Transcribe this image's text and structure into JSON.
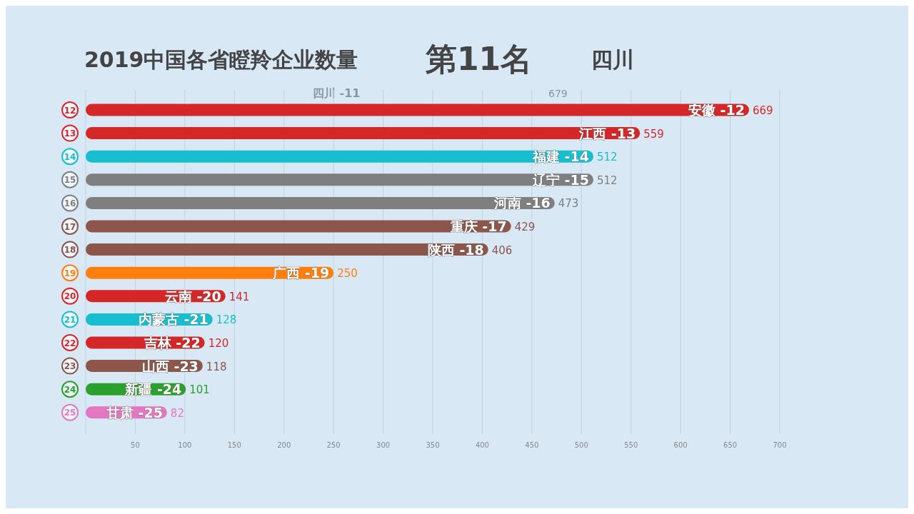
{
  "chart_data": {
    "type": "bar",
    "orientation": "horizontal",
    "title": "2019中国各省瞪羚企业数量",
    "subtitle": "第11名",
    "categories": [
      "12",
      "13",
      "14",
      "15",
      "16",
      "17",
      "18",
      "19",
      "20",
      "21",
      "22",
      "23",
      "24",
      "25"
    ],
    "values": [
      669,
      559,
      512,
      512,
      473,
      429,
      406,
      250,
      141,
      128,
      120,
      118,
      101,
      82
    ],
    "colors": [
      "#d62728",
      "#d62728",
      "#17becf",
      "#7f7f7f",
      "#7f7f7f",
      "#8c564b",
      "#8c564b",
      "#ff7f0e",
      "#d62728",
      "#17becf",
      "#d62728",
      "#8c564b",
      "#2ca02c",
      "#e377c2"
    ],
    "xlim": [
      0,
      700
    ],
    "xticks": [
      50,
      100,
      150,
      200,
      250,
      300,
      350,
      400,
      450,
      500,
      550,
      600,
      650,
      700
    ],
    "grid": "x",
    "data_labels": true,
    "annotations": [
      "四川",
      "四川 -11",
      "679",
      {
        "text": "安徽 -12",
        "x": 669,
        "y": "12"
      },
      {
        "text": "江西 -13",
        "x": 559,
        "y": "13"
      },
      {
        "text": "福建 -14",
        "x": 512,
        "y": "14"
      },
      {
        "text": "辽宁 -15",
        "x": 512,
        "y": "15"
      },
      {
        "text": "河南 -16",
        "x": 473,
        "y": "16"
      },
      {
        "text": "重庆 -17",
        "x": 429,
        "y": "17"
      },
      {
        "text": "陕西 -18",
        "x": 406,
        "y": "18"
      },
      {
        "text": "广西 -19",
        "x": 250,
        "y": "19"
      },
      {
        "text": "云南 -20",
        "x": 141,
        "y": "20"
      },
      {
        "text": "内蒙古 -21",
        "x": 128,
        "y": "21"
      },
      {
        "text": "吉林 -22",
        "x": 120,
        "y": "22"
      },
      {
        "text": "山西 -23",
        "x": 118,
        "y": "23"
      },
      {
        "text": "新疆 -24",
        "x": 101,
        "y": "24"
      },
      {
        "text": "甘肃 -25",
        "x": 82,
        "y": "25"
      }
    ]
  }
}
